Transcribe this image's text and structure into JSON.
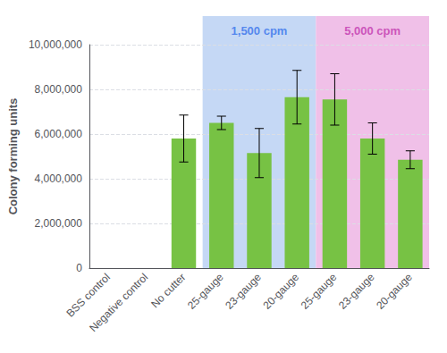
{
  "chart_data": {
    "type": "bar",
    "categories": [
      "BSS control",
      "Negative control",
      "No cutter",
      "25-gauge",
      "23-gauge",
      "20-gauge",
      "25-gauge",
      "23-gauge",
      "20-gauge"
    ],
    "values": [
      0,
      0,
      5800000,
      6500000,
      5150000,
      7650000,
      7550000,
      5800000,
      4850000
    ],
    "errors": [
      0,
      0,
      1050000,
      300000,
      1100000,
      1200000,
      1150000,
      700000,
      400000
    ],
    "color": "#77c244",
    "ylabel": "Colony forming units",
    "ylim": [
      0,
      10000000
    ],
    "yticks": [
      0,
      {
        "value": 2000000,
        "label": "2,000,000"
      },
      {
        "value": 4000000,
        "label": "4,000,000"
      },
      {
        "value": 6000000,
        "label": "6,000,000"
      },
      {
        "value": 8000000,
        "label": "8,000,000"
      },
      {
        "value": 10000000,
        "label": "10,000,000"
      }
    ],
    "grid": true,
    "annotations": [
      {
        "text": "1,500 cpm",
        "color": "#5588ee",
        "background": "#c5d8f5",
        "start": 3,
        "end": 5
      },
      {
        "text": "5,000 cpm",
        "color": "#cc55bb",
        "background": "#f0c0e8",
        "start": 6,
        "end": 8
      }
    ]
  }
}
